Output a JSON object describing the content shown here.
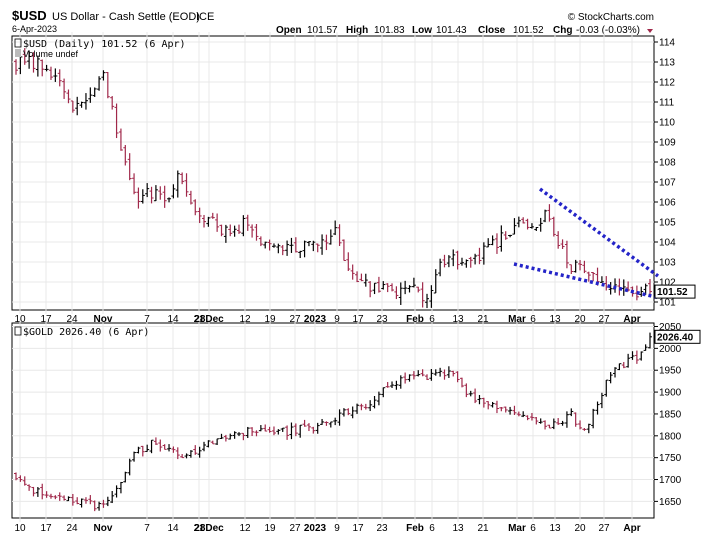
{
  "header": {
    "symbol": "$USD",
    "name": "US Dollar - Cash Settle (EOD)",
    "exchange": "ICE",
    "date": "6-Apr-2023",
    "brand": "© StockCharts.com",
    "ohlc": {
      "open_label": "Open",
      "open": "101.57",
      "high_label": "High",
      "high": "101.83",
      "low_label": "Low",
      "low": "101.43",
      "close_label": "Close",
      "close": "101.52",
      "chg_label": "Chg",
      "chg": "-0.03 (-0.03%)"
    }
  },
  "colors": {
    "up": "#000000",
    "down": "#a0284a",
    "trendline": "#2424c8",
    "grid": "#e8e8e8",
    "border": "#000000"
  },
  "chart_data": [
    {
      "type": "ohlc",
      "legend": "$USD (Daily) 101.52 (6 Apr)",
      "legend2": "Volume undef",
      "last_value_label": "101.52",
      "ylim": [
        100.6,
        114.3
      ],
      "yticks": [
        101,
        102,
        103,
        104,
        105,
        106,
        107,
        108,
        109,
        110,
        111,
        112,
        113,
        114
      ],
      "y_axis_side": "right",
      "xticks": [
        "10",
        "17",
        "24",
        "Nov",
        "7",
        "14",
        "21",
        "28Dec",
        "12",
        "19",
        "27",
        "2023",
        "9",
        "17",
        "23",
        "Feb",
        "6",
        "13",
        "21",
        "Mar",
        "6",
        "13",
        "20",
        "27",
        "Apr"
      ],
      "xtick_bold": [
        "Nov",
        "Dec",
        "2023",
        "Feb",
        "Mar",
        "Apr"
      ],
      "anchors": [
        [
          0,
          112.9
        ],
        [
          4,
          113.0
        ],
        [
          9,
          112.2
        ],
        [
          13,
          110.5
        ],
        [
          17,
          111.4
        ],
        [
          20,
          112.4
        ],
        [
          24,
          108.9
        ],
        [
          28,
          106.0
        ],
        [
          32,
          106.7
        ],
        [
          34,
          105.8
        ],
        [
          37,
          107.4
        ],
        [
          41,
          105.6
        ],
        [
          45,
          105.1
        ],
        [
          49,
          104.3
        ],
        [
          52,
          105.0
        ],
        [
          56,
          104.0
        ],
        [
          61,
          103.9
        ],
        [
          65,
          103.7
        ],
        [
          70,
          103.9
        ],
        [
          73,
          104.5
        ],
        [
          75,
          103.1
        ],
        [
          78,
          101.9
        ],
        [
          82,
          101.8
        ],
        [
          86,
          101.6
        ],
        [
          91,
          101.7
        ],
        [
          94,
          101.1
        ],
        [
          96,
          102.6
        ],
        [
          100,
          103.4
        ],
        [
          103,
          102.8
        ],
        [
          106,
          103.4
        ],
        [
          109,
          103.8
        ],
        [
          113,
          104.5
        ],
        [
          116,
          104.9
        ],
        [
          119,
          104.4
        ],
        [
          121,
          105.5
        ],
        [
          124,
          104.1
        ],
        [
          127,
          102.8
        ],
        [
          130,
          102.6
        ],
        [
          133,
          102.2
        ],
        [
          136,
          101.9
        ],
        [
          139,
          101.7
        ],
        [
          142,
          101.5
        ],
        [
          144,
          101.6
        ],
        [
          145,
          101.52
        ]
      ],
      "annotations": {
        "trendline_upper": {
          "from": [
            "Mar 1",
            106.4
          ],
          "to": [
            "Apr 6",
            102.2
          ]
        },
        "trendline_lower": {
          "from": [
            "Feb 28",
            102.7
          ],
          "to": [
            "Apr 6",
            100.8
          ]
        }
      }
    },
    {
      "type": "ohlc",
      "legend": "$GOLD 2026.40 (6 Apr)",
      "last_value_label": "2026.40",
      "ylim": [
        1612,
        2058
      ],
      "yticks": [
        1650,
        1700,
        1750,
        1800,
        1850,
        1900,
        1950,
        2000,
        2050
      ],
      "y_axis_side": "right",
      "xticks": [
        "10",
        "17",
        "24",
        "Nov",
        "7",
        "14",
        "21",
        "28Dec",
        "12",
        "19",
        "27",
        "2023",
        "9",
        "17",
        "23",
        "Feb",
        "6",
        "13",
        "21",
        "Mar",
        "6",
        "13",
        "20",
        "27",
        "Apr"
      ],
      "xtick_bold": [
        "Nov",
        "Dec",
        "2023",
        "Feb",
        "Mar",
        "Apr"
      ],
      "anchors": [
        [
          0,
          1710
        ],
        [
          3,
          1683
        ],
        [
          6,
          1668
        ],
        [
          10,
          1660
        ],
        [
          14,
          1652
        ],
        [
          19,
          1640
        ],
        [
          23,
          1680
        ],
        [
          27,
          1760
        ],
        [
          30,
          1778
        ],
        [
          32,
          1786
        ],
        [
          35,
          1770
        ],
        [
          38,
          1752
        ],
        [
          41,
          1762
        ],
        [
          45,
          1790
        ],
        [
          49,
          1805
        ],
        [
          53,
          1812
        ],
        [
          58,
          1818
        ],
        [
          62,
          1810
        ],
        [
          67,
          1818
        ],
        [
          72,
          1828
        ],
        [
          76,
          1860
        ],
        [
          80,
          1870
        ],
        [
          84,
          1902
        ],
        [
          88,
          1925
        ],
        [
          91,
          1932
        ],
        [
          94,
          1936
        ],
        [
          97,
          1940
        ],
        [
          100,
          1946
        ],
        [
          102,
          1912
        ],
        [
          105,
          1880
        ],
        [
          109,
          1872
        ],
        [
          113,
          1862
        ],
        [
          117,
          1844
        ],
        [
          121,
          1818
        ],
        [
          124,
          1830
        ],
        [
          127,
          1850
        ],
        [
          129,
          1818
        ],
        [
          131,
          1825
        ],
        [
          133,
          1880
        ],
        [
          136,
          1940
        ],
        [
          139,
          1965
        ],
        [
          142,
          1982
        ],
        [
          145,
          2026.4
        ]
      ]
    }
  ]
}
